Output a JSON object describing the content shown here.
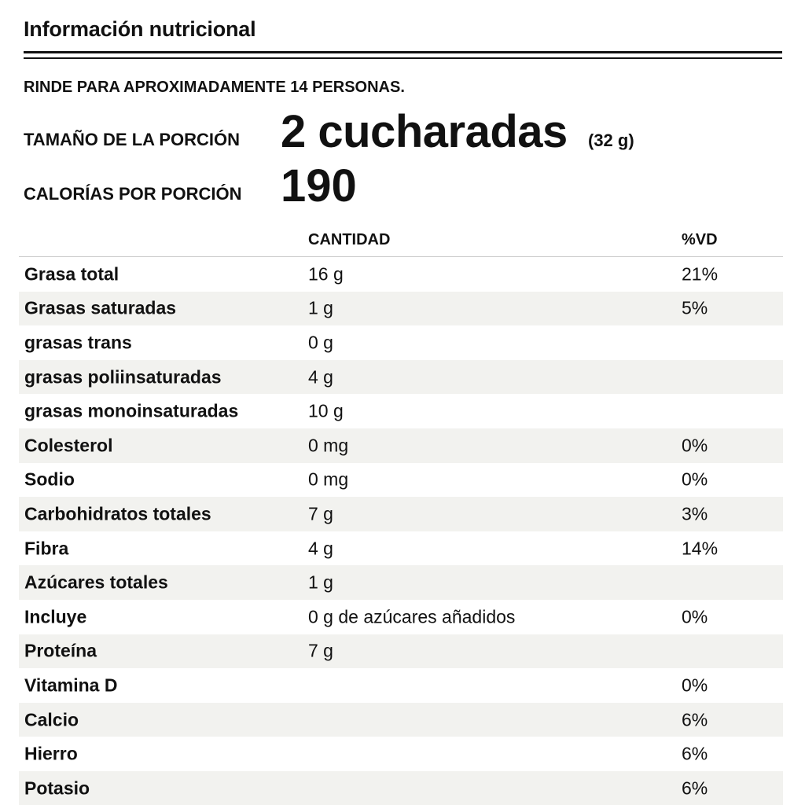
{
  "title": "Información nutricional",
  "yield": "RINDE PARA APROXIMADAMENTE 14 PERSONAS.",
  "serving": {
    "label": "TAMAÑO DE LA PORCIÓN",
    "value": "2 cucharadas",
    "grams": "(32 g)"
  },
  "calories": {
    "label": "CALORÍAS POR PORCIÓN",
    "value": "190"
  },
  "table": {
    "headers": {
      "amount": "CANTIDAD",
      "dv": "%VD"
    },
    "rows": [
      {
        "name": "Grasa total",
        "amount": "16 g",
        "dv": "21%"
      },
      {
        "name": "Grasas saturadas",
        "amount": "1 g",
        "dv": "5%"
      },
      {
        "name": "grasas trans",
        "amount": "0 g",
        "dv": ""
      },
      {
        "name": "grasas poliinsaturadas",
        "amount": "4 g",
        "dv": ""
      },
      {
        "name": "grasas monoinsaturadas",
        "amount": "10 g",
        "dv": ""
      },
      {
        "name": "Colesterol",
        "amount": "0 mg",
        "dv": "0%"
      },
      {
        "name": "Sodio",
        "amount": "0 mg",
        "dv": "0%"
      },
      {
        "name": "Carbohidratos totales",
        "amount": "7 g",
        "dv": "3%"
      },
      {
        "name": "Fibra",
        "amount": "4 g",
        "dv": "14%"
      },
      {
        "name": "Azúcares totales",
        "amount": "1 g",
        "dv": ""
      },
      {
        "name": "Incluye",
        "amount": "0 g de azúcares añadidos",
        "dv": "0%"
      },
      {
        "name": "Proteína",
        "amount": "7 g",
        "dv": ""
      },
      {
        "name": "Vitamina D",
        "amount": "",
        "dv": "0%"
      },
      {
        "name": "Calcio",
        "amount": "",
        "dv": "6%"
      },
      {
        "name": "Hierro",
        "amount": "",
        "dv": "6%"
      },
      {
        "name": "Potasio",
        "amount": "",
        "dv": "6%"
      }
    ]
  },
  "colors": {
    "text": "#111111",
    "shade": "#f2f2ef"
  }
}
